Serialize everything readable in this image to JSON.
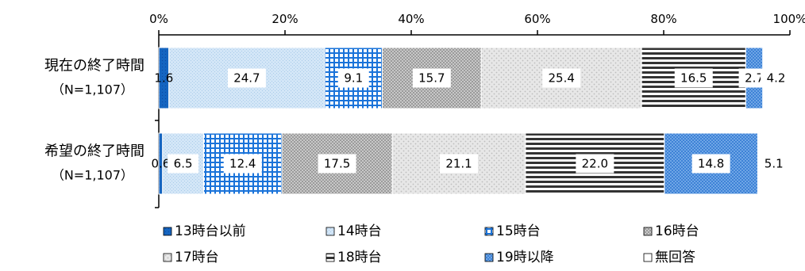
{
  "chart_data": {
    "type": "bar",
    "orientation": "horizontal",
    "stacked": true,
    "xlim": [
      0,
      100
    ],
    "xticks": [
      "0%",
      "20%",
      "40%",
      "60%",
      "80%",
      "100%"
    ],
    "categories": [
      {
        "label": "現在の終了時間",
        "n": "（N=1,107）"
      },
      {
        "label": "希望の終了時間",
        "n": "（N=1,107）"
      }
    ],
    "series": [
      {
        "name": "13時台以前",
        "values": [
          1.6,
          0.6
        ],
        "labels": [
          "1.6",
          "0.6"
        ]
      },
      {
        "name": "14時台",
        "values": [
          24.7,
          6.5
        ],
        "labels": [
          "24.7",
          "6.5"
        ]
      },
      {
        "name": "15時台",
        "values": [
          9.1,
          12.4
        ],
        "labels": [
          "9.1",
          "12.4"
        ]
      },
      {
        "name": "16時台",
        "values": [
          15.7,
          17.5
        ],
        "labels": [
          "15.7",
          "17.5"
        ]
      },
      {
        "name": "17時台",
        "values": [
          25.4,
          21.1
        ],
        "labels": [
          "25.4",
          "21.1"
        ]
      },
      {
        "name": "18時台",
        "values": [
          16.5,
          22.0
        ],
        "labels": [
          "16.5",
          "22.0"
        ]
      },
      {
        "name": "19時以降",
        "values": [
          2.7,
          14.8
        ],
        "labels": [
          "2.7",
          "14.8"
        ]
      },
      {
        "name": "無回答",
        "values": [
          4.2,
          5.1
        ],
        "labels": [
          "4.2",
          "5.1"
        ]
      }
    ],
    "legend_position": "bottom"
  }
}
